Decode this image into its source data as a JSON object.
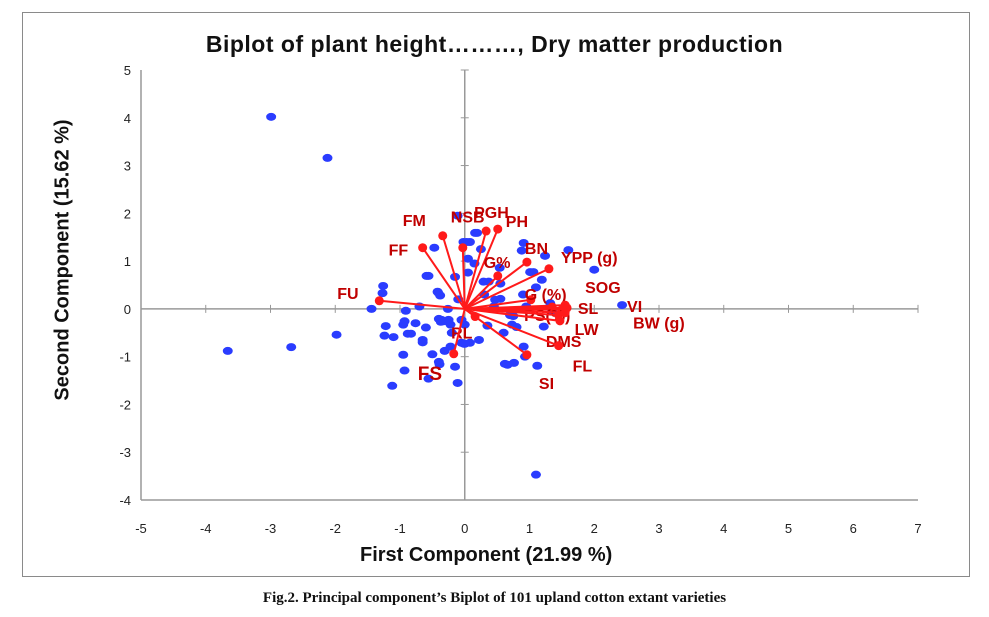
{
  "chart_data": {
    "type": "scatter",
    "title": "Biplot of plant height………, Dry matter production",
    "xlabel": "First Component  (21.99 %)",
    "ylabel": "Second Component  (15.62 %)",
    "caption": "Fig.2. Principal component’s Biplot of 101 upland cotton extant varieties",
    "xlim": [
      -5,
      7
    ],
    "ylim": [
      -4,
      5
    ],
    "xticks": [
      "-5",
      "-4",
      "-3",
      "-2",
      "-1",
      "0",
      "1",
      "2",
      "3",
      "4",
      "5",
      "6",
      "7"
    ],
    "yticks": [
      "-4",
      "-3",
      "-2",
      "-1",
      "0",
      "1",
      "2",
      "3",
      "4",
      "5"
    ],
    "point_color": "#2a3cff",
    "vector_color": "#ff1a1a",
    "label_color": "#c00000",
    "points": [
      [
        -2.99,
        4.02
      ],
      [
        -2.12,
        3.16
      ],
      [
        -3.66,
        -0.88
      ],
      [
        -2.68,
        -0.8
      ],
      [
        -1.98,
        -0.54
      ],
      [
        -1.26,
        0.48
      ],
      [
        -1.27,
        0.33
      ],
      [
        -1.44,
        0.0
      ],
      [
        -0.91,
        -0.04
      ],
      [
        -1.22,
        -0.36
      ],
      [
        -1.24,
        -0.56
      ],
      [
        -1.1,
        -0.59
      ],
      [
        -0.95,
        -0.33
      ],
      [
        -0.93,
        -0.26
      ],
      [
        -0.76,
        -0.3
      ],
      [
        -0.6,
        -0.39
      ],
      [
        -0.88,
        -0.52
      ],
      [
        -0.83,
        -0.52
      ],
      [
        -0.65,
        -0.65
      ],
      [
        -0.65,
        -0.7
      ],
      [
        -0.95,
        -0.96
      ],
      [
        -0.93,
        -1.29
      ],
      [
        -1.12,
        -1.61
      ],
      [
        -0.56,
        -1.46
      ],
      [
        -0.4,
        -1.11
      ],
      [
        -0.39,
        -1.16
      ],
      [
        -0.15,
        -1.21
      ],
      [
        -0.11,
        -1.55
      ],
      [
        -0.31,
        -0.88
      ],
      [
        -0.05,
        -0.71
      ],
      [
        -0.01,
        -0.73
      ],
      [
        -0.4,
        -0.21
      ],
      [
        -0.37,
        -0.27
      ],
      [
        -0.33,
        -0.26
      ],
      [
        -0.36,
        -0.23
      ],
      [
        0.0,
        -0.33
      ],
      [
        -0.05,
        -0.23
      ],
      [
        -0.59,
        0.69
      ],
      [
        -0.56,
        0.69
      ],
      [
        -0.15,
        0.67
      ],
      [
        -0.42,
        0.36
      ],
      [
        -0.41,
        0.34
      ],
      [
        -0.38,
        0.28
      ],
      [
        -0.26,
        0.0
      ],
      [
        -0.47,
        1.28
      ],
      [
        -0.11,
        1.95
      ],
      [
        0.19,
        1.59
      ],
      [
        -0.02,
        1.4
      ],
      [
        0.03,
        1.4
      ],
      [
        0.05,
        1.05
      ],
      [
        0.05,
        0.76
      ],
      [
        0.16,
        1.59
      ],
      [
        0.08,
        1.4
      ],
      [
        0.91,
        1.38
      ],
      [
        0.88,
        1.22
      ],
      [
        1.24,
        1.11
      ],
      [
        1.6,
        1.23
      ],
      [
        2.0,
        0.82
      ],
      [
        0.54,
        0.86
      ],
      [
        1.01,
        0.77
      ],
      [
        1.06,
        0.77
      ],
      [
        0.29,
        0.57
      ],
      [
        0.37,
        0.57
      ],
      [
        0.55,
        0.53
      ],
      [
        1.19,
        0.61
      ],
      [
        0.47,
        0.19
      ],
      [
        0.55,
        0.21
      ],
      [
        1.32,
        0.12
      ],
      [
        2.43,
        0.08
      ],
      [
        0.7,
        -0.13
      ],
      [
        0.75,
        -0.15
      ],
      [
        0.73,
        -0.33
      ],
      [
        0.8,
        -0.38
      ],
      [
        1.22,
        -0.37
      ],
      [
        -0.25,
        -0.23
      ],
      [
        -0.22,
        -0.33
      ],
      [
        0.08,
        -0.71
      ],
      [
        0.0,
        -0.73
      ],
      [
        0.22,
        -0.65
      ],
      [
        0.91,
        -0.79
      ],
      [
        0.93,
        -1.0
      ],
      [
        0.76,
        -1.13
      ],
      [
        0.66,
        -1.17
      ],
      [
        0.62,
        -1.15
      ],
      [
        1.12,
        -1.19
      ],
      [
        1.1,
        -3.47
      ],
      [
        -0.2,
        -0.5
      ],
      [
        -0.22,
        -0.79
      ],
      [
        0.3,
        0.3
      ],
      [
        0.45,
        0.05
      ],
      [
        0.9,
        0.3
      ],
      [
        1.1,
        0.45
      ],
      [
        0.6,
        -0.5
      ],
      [
        0.35,
        -0.35
      ],
      [
        -0.1,
        0.2
      ],
      [
        0.15,
        0.95
      ],
      [
        1.35,
        -0.05
      ],
      [
        0.95,
        0.05
      ],
      [
        -0.7,
        0.05
      ],
      [
        -0.5,
        -0.95
      ],
      [
        0.25,
        1.25
      ]
    ],
    "vectors": [
      {
        "name": "FU",
        "x": -1.32,
        "y": 0.17
      },
      {
        "name": "FF",
        "x": -0.65,
        "y": 1.28
      },
      {
        "name": "FM",
        "x": -0.34,
        "y": 1.53
      },
      {
        "name": "NSB",
        "x": -0.03,
        "y": 1.28
      },
      {
        "name": "PGH",
        "x": 0.33,
        "y": 1.63
      },
      {
        "name": "PH",
        "x": 0.51,
        "y": 1.67
      },
      {
        "name": "G%",
        "x": 0.51,
        "y": 0.69
      },
      {
        "name": "BN",
        "x": 0.96,
        "y": 0.98
      },
      {
        "name": "YPP (g)",
        "x": 1.3,
        "y": 0.84
      },
      {
        "name": "G (%)",
        "x": 1.02,
        "y": 0.19
      },
      {
        "name": "SOG",
        "x": 1.55,
        "y": 0.08
      },
      {
        "name": "SL",
        "x": 1.5,
        "y": -0.02
      },
      {
        "name": "VI",
        "x": 1.58,
        "y": 0.02
      },
      {
        "name": "PS(%)",
        "x": 1.35,
        "y": 0.04
      },
      {
        "name": "LW",
        "x": 1.45,
        "y": -0.13
      },
      {
        "name": "BW (g)",
        "x": 1.55,
        "y": -0.08
      },
      {
        "name": "DMS",
        "x": 1.47,
        "y": -0.25
      },
      {
        "name": "FL",
        "x": 1.45,
        "y": -0.77
      },
      {
        "name": "SI",
        "x": 0.96,
        "y": -0.96
      },
      {
        "name": "RL",
        "x": 0.16,
        "y": -0.16
      },
      {
        "name": "FS",
        "x": -0.17,
        "y": -0.94
      }
    ]
  }
}
